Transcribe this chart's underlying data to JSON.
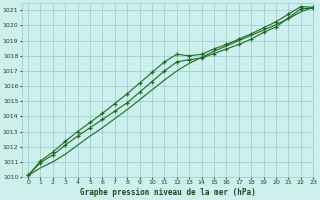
{
  "xlabel": "Graphe pression niveau de la mer (hPa)",
  "xlim": [
    -0.5,
    23
  ],
  "ylim": [
    1010,
    1021.5
  ],
  "yticks": [
    1010,
    1011,
    1012,
    1013,
    1014,
    1015,
    1016,
    1017,
    1018,
    1019,
    1020,
    1021
  ],
  "xticks": [
    0,
    1,
    2,
    3,
    4,
    5,
    6,
    7,
    8,
    9,
    10,
    11,
    12,
    13,
    14,
    15,
    16,
    17,
    18,
    19,
    20,
    21,
    22,
    23
  ],
  "background_color": "#cdf0ee",
  "grid_color": "#8ecece",
  "line_color": "#1a6b1a",
  "series1_marked": [
    1010.1,
    1010.95,
    1011.45,
    1012.1,
    1012.7,
    1013.25,
    1013.8,
    1014.35,
    1014.9,
    1015.6,
    1016.3,
    1017.0,
    1017.6,
    1017.75,
    1017.85,
    1018.15,
    1018.45,
    1018.75,
    1019.1,
    1019.55,
    1019.9,
    1020.5,
    1021.1,
    1021.15
  ],
  "series2_marked": [
    1010.1,
    1011.05,
    1011.65,
    1012.35,
    1013.0,
    1013.6,
    1014.2,
    1014.85,
    1015.5,
    1016.2,
    1016.9,
    1017.6,
    1018.1,
    1018.0,
    1018.1,
    1018.45,
    1018.75,
    1019.1,
    1019.45,
    1019.85,
    1020.25,
    1020.75,
    1021.25,
    1021.2
  ],
  "series3_smooth": [
    1010.1,
    1010.6,
    1011.0,
    1011.5,
    1012.1,
    1012.7,
    1013.25,
    1013.85,
    1014.45,
    1015.1,
    1015.75,
    1016.4,
    1017.0,
    1017.5,
    1017.9,
    1018.3,
    1018.65,
    1019.0,
    1019.35,
    1019.7,
    1020.05,
    1020.45,
    1020.9,
    1021.2
  ]
}
